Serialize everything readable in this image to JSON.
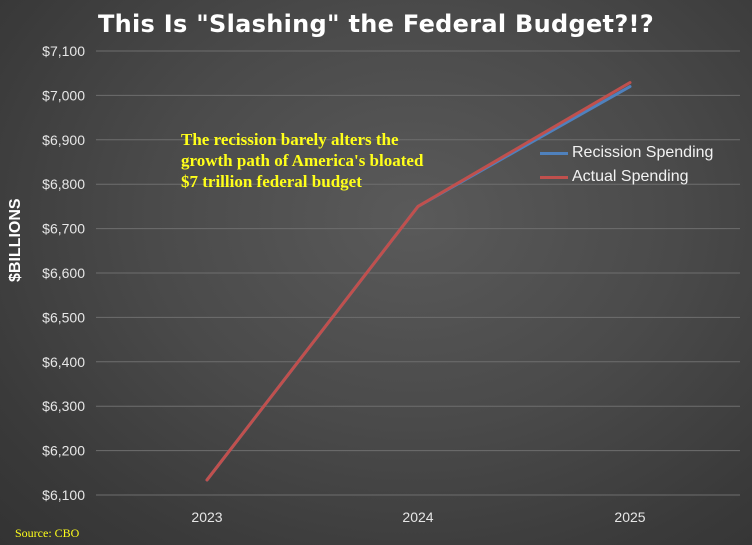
{
  "chart_data": {
    "type": "line",
    "title": "This Is \"Slashing\" the Federal Budget?!?",
    "ylabel": "$BILLIONS",
    "xlabel": "",
    "categories": [
      "2023",
      "2024",
      "2025"
    ],
    "ylim": [
      6100,
      7100
    ],
    "yticks": [
      6100,
      6200,
      6300,
      6400,
      6500,
      6600,
      6700,
      6800,
      6900,
      7000,
      7100
    ],
    "ytick_labels": [
      "$6,100",
      "$6,200",
      "$6,300",
      "$6,400",
      "$6,500",
      "$6,600",
      "$6,700",
      "$6,800",
      "$6,900",
      "$7,000",
      "$7,100"
    ],
    "grid": true,
    "legend_position": "right",
    "series": [
      {
        "name": "Recission Spending",
        "color": "#4f81bd",
        "values": [
          6134,
          6750,
          7020
        ]
      },
      {
        "name": "Actual Spending",
        "color": "#c0504d",
        "values": [
          6134,
          6750,
          7029
        ]
      }
    ],
    "annotation": [
      "The recission barely alters the",
      "growth path of America's bloated",
      "$7 trillion federal budget"
    ],
    "source": "Source: CBO"
  }
}
